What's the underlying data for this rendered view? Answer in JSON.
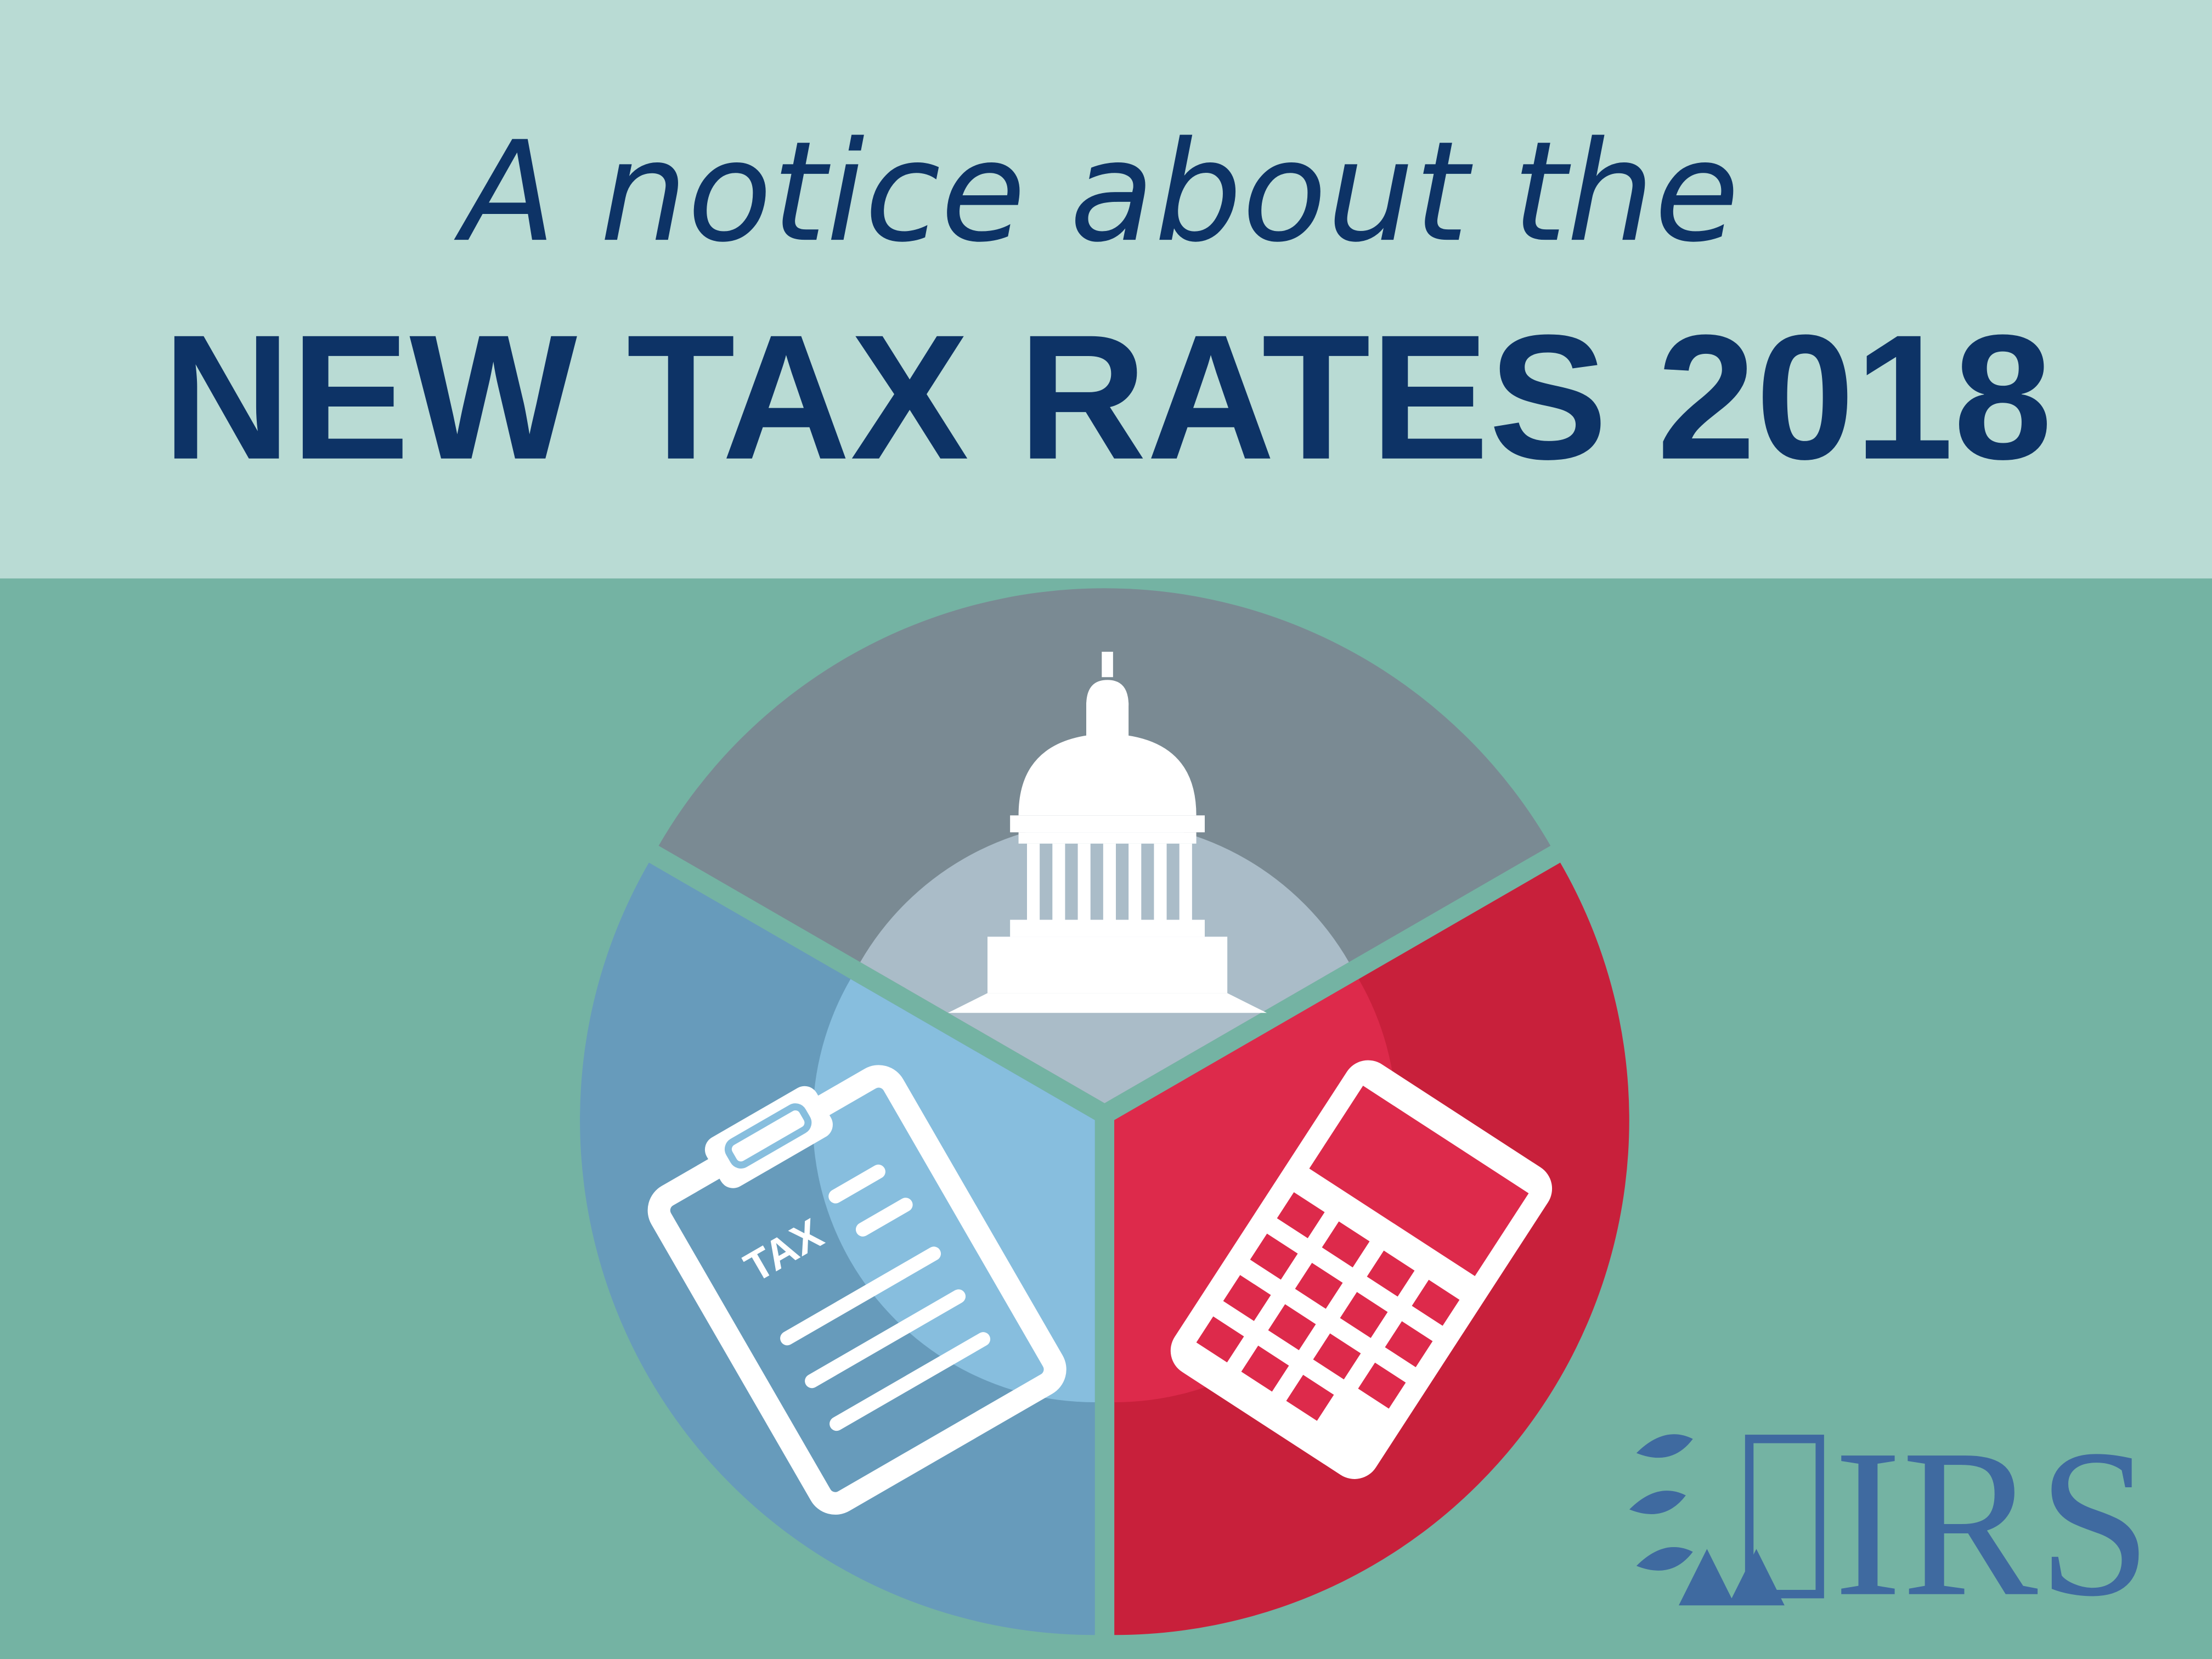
{
  "header": {
    "line1": "A notice about the",
    "line2": "NEW TAX RATES 2018"
  },
  "icon": {
    "form_label": "TAX"
  },
  "logo": {
    "text": "IRS"
  }
}
